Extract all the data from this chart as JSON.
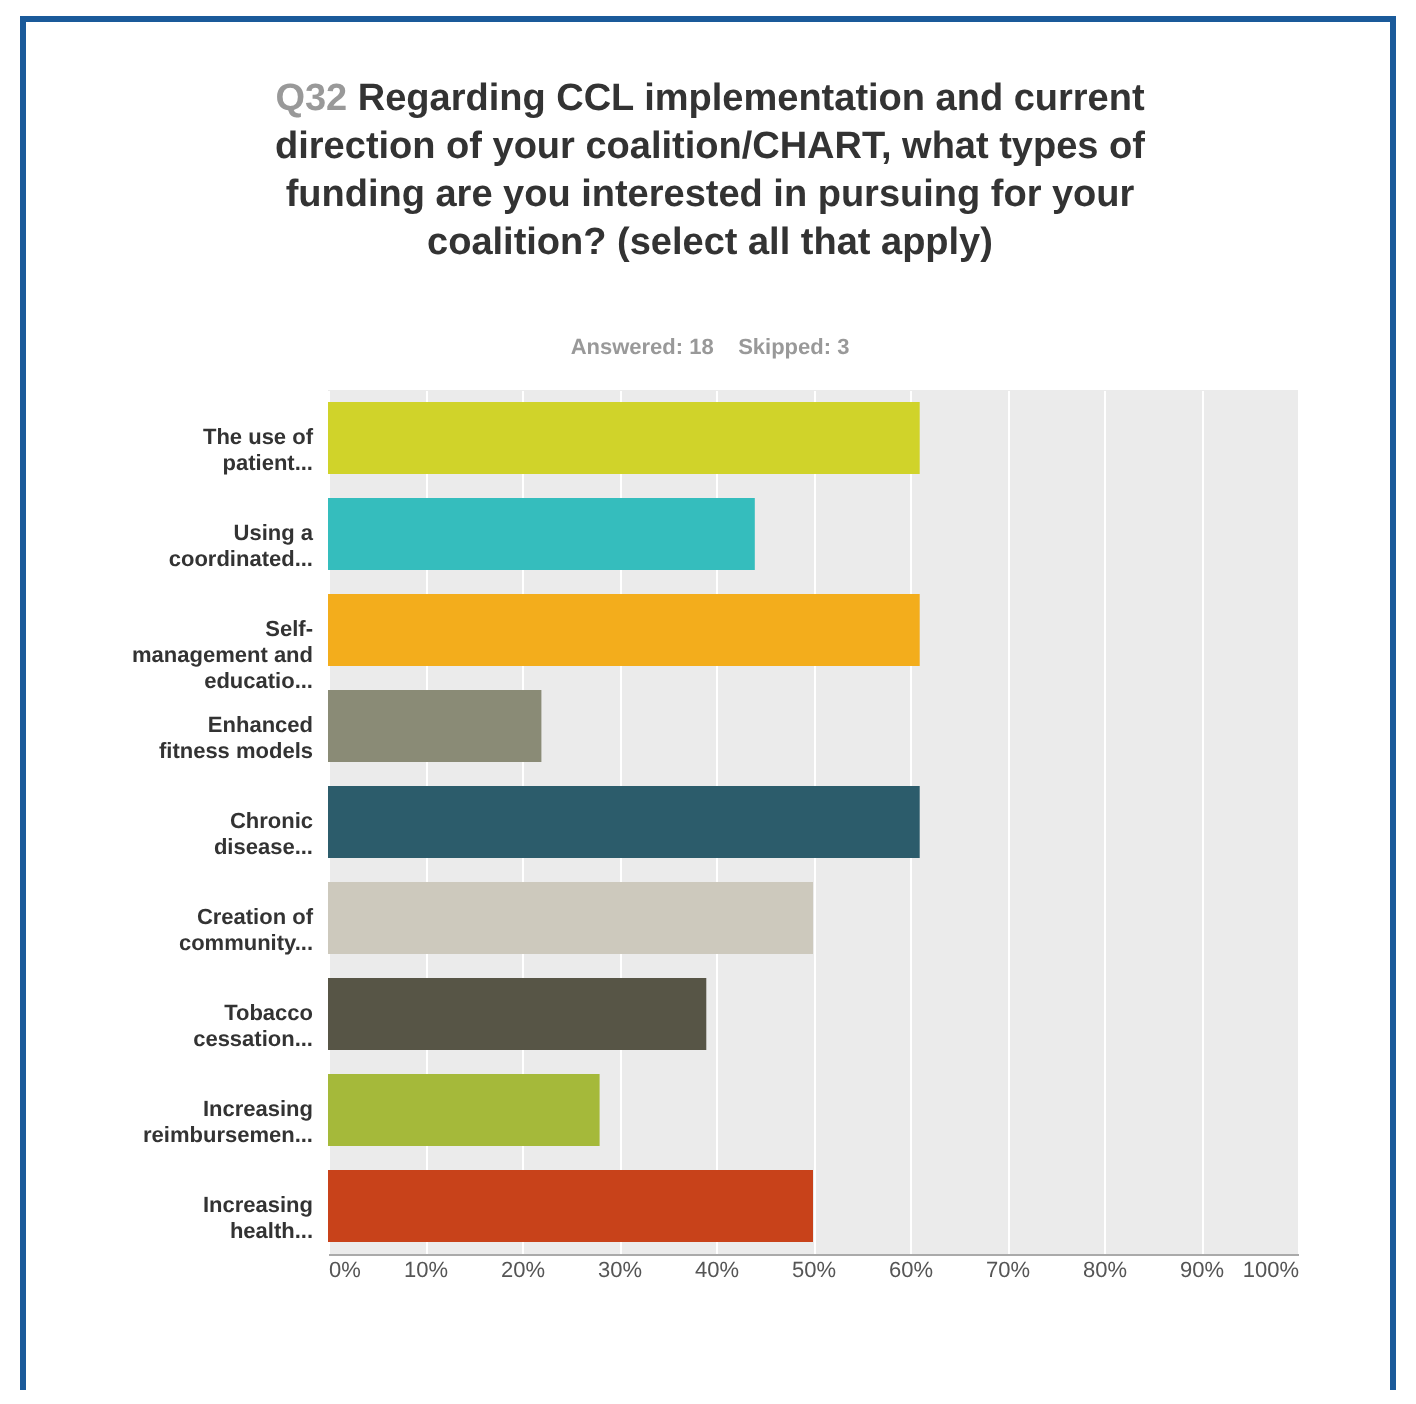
{
  "chart_data": {
    "type": "bar",
    "orientation": "horizontal",
    "title": "Q32 Regarding CCL implementation and current direction of your coalition/CHART, what types of funding are you interested in pursuing for your coalition? (select all that apply)",
    "subtitle": "Answered: 18    Skipped: 3",
    "categories": [
      "The use of patient...",
      "Using a coordinated...",
      "Self-management and educatio...",
      "Enhanced fitness models",
      "Chronic disease...",
      "Creation of community...",
      "Tobacco cessation...",
      "Increasing reimbursemen...",
      "Increasing health..."
    ],
    "values": [
      61,
      44,
      61,
      22,
      61,
      50,
      39,
      28,
      50
    ],
    "colors": [
      "#d0d32a",
      "#35bdbd",
      "#f3ad1c",
      "#8a8b76",
      "#2c5c6b",
      "#cdc9bd",
      "#575546",
      "#a5b93a",
      "#c8421a"
    ],
    "xlim": [
      0,
      100
    ],
    "xticks": [
      {
        "value": 0,
        "label": "0%"
      },
      {
        "value": 10,
        "label": "10%"
      },
      {
        "value": 20,
        "label": "20%"
      },
      {
        "value": 30,
        "label": "30%"
      },
      {
        "value": 40,
        "label": "40%"
      },
      {
        "value": 50,
        "label": "50%"
      },
      {
        "value": 60,
        "label": "60%"
      },
      {
        "value": 70,
        "label": "70%"
      },
      {
        "value": 80,
        "label": "80%"
      },
      {
        "value": 90,
        "label": "90%"
      },
      {
        "value": 100,
        "label": "100%"
      }
    ],
    "grid": "x",
    "legend": false
  }
}
